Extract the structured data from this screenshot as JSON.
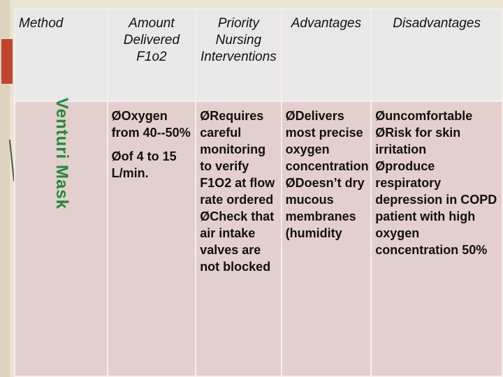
{
  "header": {
    "method": "Method",
    "amount": "Amount Delivered F1o2",
    "priority": "Priority Nursing Interventions",
    "advantages": "Advantages",
    "disadvantages": "Disadvantages"
  },
  "row": {
    "method": "Venturi Mask",
    "amount": [
      "Oxygen from 40--50%",
      "of 4 to 15 L/min."
    ],
    "priority": [
      "Requires careful monitoring to verify F1O2 at flow rate ordered",
      "Check that air intake valves are not blocked"
    ],
    "advantages": [
      "Delivers most precise oxygen concentration",
      "Doesn’t dry mucous membranes (humidity"
    ],
    "disadvantages": [
      "uncomfortable",
      "Risk for skin irritation",
      "produce respiratory depression in COPD patient with high oxygen concentration 50%"
    ]
  },
  "bullet_glyph": "Ø",
  "colors": {
    "header_bg": "#e8e8e8",
    "body_bg": "#e3cfcd",
    "vertical_text": "#1f8a3b",
    "accent": "#c0452c"
  }
}
